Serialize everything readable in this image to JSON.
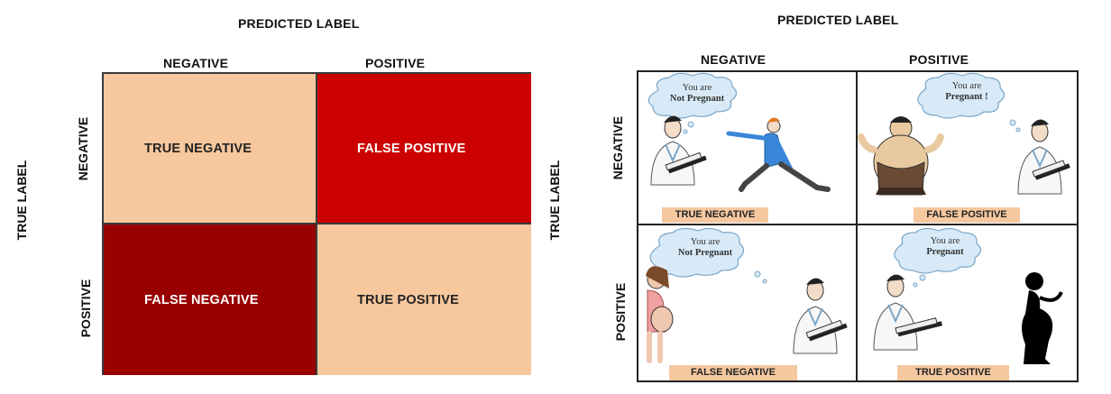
{
  "left_matrix": {
    "predicted_label": "PREDICTED LABEL",
    "true_label": "TRUE LABEL",
    "col_negative": "NEGATIVE",
    "col_positive": "POSITIVE",
    "row_negative": "NEGATIVE",
    "row_positive": "POSITIVE",
    "cells": {
      "true_negative": "TRUE NEGATIVE",
      "false_positive": "FALSE POSITIVE",
      "false_negative": "FALSE NEGATIVE",
      "true_positive": "TRUE POSITIVE"
    },
    "colors": {
      "true_negative": "#f7c79d",
      "false_positive": "#cc0000",
      "false_negative": "#990000",
      "true_positive": "#f7c79d"
    }
  },
  "right_matrix": {
    "predicted_label": "PREDICTED LABEL",
    "true_label": "TRUE LABEL",
    "col_negative": "NEGATIVE",
    "col_positive": "POSITIVE",
    "row_negative": "NEGATIVE",
    "row_positive": "POSITIVE",
    "cells": {
      "true_negative": {
        "bubble_line1": "You are",
        "bubble_line2": "Not Pregnant",
        "tag": "TRUE NEGATIVE",
        "icons": [
          "doctor-icon",
          "dancing-man-icon"
        ]
      },
      "false_positive": {
        "bubble_line1": "You are",
        "bubble_line2": "Pregnant !",
        "tag": "FALSE POSITIVE",
        "icons": [
          "sumo-wrestler-icon",
          "doctor-icon"
        ]
      },
      "false_negative": {
        "bubble_line1": "You are",
        "bubble_line2": "Not Pregnant",
        "tag": "FALSE NEGATIVE",
        "icons": [
          "pregnant-woman-icon",
          "doctor-icon"
        ]
      },
      "true_positive": {
        "bubble_line1": "You are",
        "bubble_line2": "Pregnant",
        "tag": "TRUE POSITIVE",
        "icons": [
          "doctor-icon",
          "pregnant-silhouette-icon"
        ]
      }
    },
    "tag_color": "#f5c8a0"
  }
}
